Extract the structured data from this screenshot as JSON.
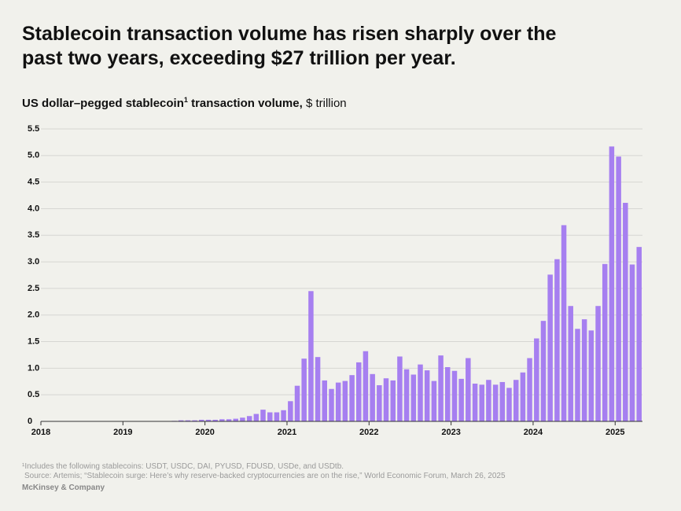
{
  "chart_data": {
    "type": "bar",
    "title": "Stablecoin transaction volume has risen sharply over the past two years, exceeding $27 trillion per year.",
    "subtitle": "US dollar–pegged stablecoin",
    "subtitle_note": "1",
    "subtitle_rest": " transaction volume,",
    "unit": "$ trillion",
    "footnote": "¹Includes the following stablecoins: USDT, USDC, DAI, PYUSD, FDUSD, USDe, and USDtb.",
    "source": "Source: Artemis; “Stablecoin surge: Here’s why reserve-backed cryptocurrencies are on the rise,” World Economic Forum, March 26, 2025",
    "brand": "McKinsey & Company",
    "color": "#a67ff0",
    "grid": true,
    "xlim": [
      2018,
      2025.333
    ],
    "xticks": [
      2018,
      2019,
      2020,
      2021,
      2022,
      2023,
      2024,
      2025
    ],
    "ylim": [
      0,
      5.5
    ],
    "yticks": [
      0,
      0.5,
      {
        "value": 1,
        "label": "1.0"
      },
      1.5,
      {
        "value": 2,
        "label": "2.0"
      },
      2.5,
      {
        "value": 3,
        "label": "3.0"
      },
      3.5,
      {
        "value": 4,
        "label": "4.0"
      },
      4.5,
      {
        "value": 5,
        "label": "5.0"
      },
      5.5
    ],
    "x": [
      2018.042,
      2018.125,
      2018.208,
      2018.292,
      2018.375,
      2018.458,
      2018.542,
      2018.625,
      2018.708,
      2018.792,
      2018.875,
      2018.958,
      2019.042,
      2019.125,
      2019.208,
      2019.292,
      2019.375,
      2019.458,
      2019.542,
      2019.625,
      2019.708,
      2019.792,
      2019.875,
      2019.958,
      2020.042,
      2020.125,
      2020.208,
      2020.292,
      2020.375,
      2020.458,
      2020.542,
      2020.625,
      2020.708,
      2020.792,
      2020.875,
      2020.958,
      2021.042,
      2021.125,
      2021.208,
      2021.292,
      2021.375,
      2021.458,
      2021.542,
      2021.625,
      2021.708,
      2021.792,
      2021.875,
      2021.958,
      2022.042,
      2022.125,
      2022.208,
      2022.292,
      2022.375,
      2022.458,
      2022.542,
      2022.625,
      2022.708,
      2022.792,
      2022.875,
      2022.958,
      2023.042,
      2023.125,
      2023.208,
      2023.292,
      2023.375,
      2023.458,
      2023.542,
      2023.625,
      2023.708,
      2023.792,
      2023.875,
      2023.958,
      2024.042,
      2024.125,
      2024.208,
      2024.292,
      2024.375,
      2024.458,
      2024.542,
      2024.625,
      2024.708,
      2024.792,
      2024.875,
      2024.958,
      2025.042,
      2025.125,
      2025.208,
      2025.292
    ],
    "values": [
      0,
      0,
      0,
      0,
      0,
      0,
      0,
      0,
      0,
      0,
      0,
      0,
      0,
      0,
      0,
      0,
      0,
      0,
      0,
      0.01,
      0.02,
      0.02,
      0.02,
      0.03,
      0.03,
      0.03,
      0.04,
      0.04,
      0.05,
      0.07,
      0.1,
      0.14,
      0.22,
      0.17,
      0.17,
      0.21,
      0.38,
      0.67,
      1.18,
      2.45,
      1.21,
      0.77,
      0.61,
      0.73,
      0.76,
      0.87,
      1.11,
      1.32,
      0.89,
      0.68,
      0.81,
      0.77,
      1.22,
      0.98,
      0.88,
      1.07,
      0.96,
      0.76,
      1.24,
      1.02,
      0.95,
      0.8,
      1.19,
      0.71,
      0.69,
      0.78,
      0.69,
      0.74,
      0.63,
      0.78,
      0.92,
      1.19,
      1.56,
      1.89,
      2.76,
      3.05,
      3.69,
      2.17,
      1.74,
      1.92,
      1.71,
      2.17,
      2.96,
      5.17,
      4.98,
      4.11,
      2.95,
      3.28
    ]
  }
}
